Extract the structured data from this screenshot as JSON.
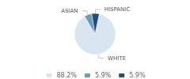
{
  "chart_data": {
    "type": "pie",
    "categories": [
      "WHITE",
      "ASIAN",
      "HISPANIC"
    ],
    "values": [
      88.2,
      5.9,
      5.9
    ],
    "value_labels": [
      "88.2%",
      "5.9%",
      "5.9%"
    ],
    "colors": [
      "#d9e5f0",
      "#6a9dba",
      "#1f4e79"
    ],
    "legend": "bottom"
  }
}
